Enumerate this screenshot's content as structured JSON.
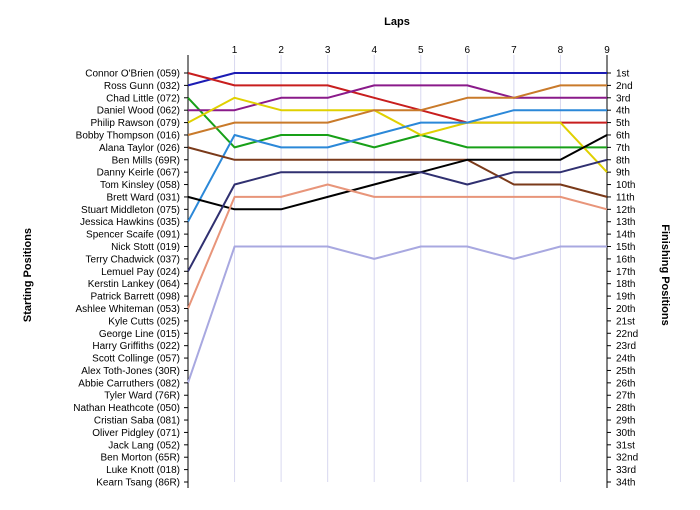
{
  "chart_data": {
    "type": "line",
    "title": "Laps",
    "ylabel_left": "Starting Positions",
    "ylabel_right": "Finishing Positions",
    "x_ticks": [
      "1",
      "2",
      "3",
      "4",
      "5",
      "6",
      "7",
      "8",
      "9"
    ],
    "x_range": [
      0,
      9
    ],
    "y_range": [
      1,
      34
    ],
    "grid": true,
    "starting_labels": [
      "Connor O'Brien (059)",
      "Ross Gunn (032)",
      "Chad Little (072)",
      "Daniel Wood (062)",
      "Philip Rawson (079)",
      "Bobby Thompson (016)",
      "Alana Taylor (026)",
      "Ben Mills (69R)",
      "Danny Keirle (067)",
      "Tom Kinsley (058)",
      "Brett Ward (031)",
      "Stuart Middleton (075)",
      "Jessica Hawkins (035)",
      "Spencer Scaife (091)",
      "Nick Stott (019)",
      "Terry Chadwick (037)",
      "Lemuel Pay (024)",
      "Kerstin Lankey (064)",
      "Patrick Barrett (098)",
      "Ashlee Whiteman (053)",
      "Kyle Cutts (025)",
      "George Line (015)",
      "Harry Griffiths (022)",
      "Scott Collinge (057)",
      "Alex Toth-Jones (30R)",
      "Abbie Carruthers (082)",
      "Tyler Ward (76R)",
      "Nathan Heathcote (050)",
      "Cristian Saba (081)",
      "Oliver Pidgley (071)",
      "Jack Lang (052)",
      "Ben Morton (65R)",
      "Luke Knott (018)",
      "Kearn Tsang (86R)"
    ],
    "finishing_labels": [
      "1st",
      "2nd",
      "3rd",
      "4th",
      "5th",
      "6th",
      "7th",
      "8th",
      "9th",
      "10th",
      "11th",
      "12th",
      "13th",
      "14th",
      "15th",
      "16th",
      "17th",
      "18th",
      "19th",
      "20th",
      "21st",
      "22nd",
      "23rd",
      "24th",
      "25th",
      "26th",
      "27th",
      "28th",
      "29th",
      "30th",
      "31st",
      "32nd",
      "33rd",
      "34th"
    ],
    "series": [
      {
        "color": "#1c1cb4",
        "positions": [
          2,
          1,
          1,
          1,
          1,
          1,
          1,
          1,
          1,
          1
        ]
      },
      {
        "color": "#c81e1e",
        "positions": [
          1,
          2,
          2,
          2,
          3,
          4,
          5,
          5,
          5,
          5
        ]
      },
      {
        "color": "#18a018",
        "positions": [
          3,
          7,
          6,
          6,
          7,
          6,
          7,
          7,
          7,
          7
        ]
      },
      {
        "color": "#8a1a8a",
        "positions": [
          4,
          4,
          3,
          3,
          2,
          2,
          2,
          3,
          3,
          3
        ]
      },
      {
        "color": "#e0d000",
        "positions": [
          5,
          3,
          4,
          4,
          4,
          6,
          5,
          5,
          5,
          9
        ]
      },
      {
        "color": "#c97a2a",
        "positions": [
          6,
          5,
          5,
          5,
          4,
          4,
          3,
          3,
          2,
          2
        ]
      },
      {
        "color": "#2b88d8",
        "positions": [
          13,
          6,
          7,
          7,
          6,
          5,
          5,
          4,
          4,
          4
        ]
      },
      {
        "color": "#7a3a1a",
        "positions": [
          7,
          8,
          8,
          8,
          8,
          8,
          8,
          10,
          10,
          11
        ]
      },
      {
        "color": "#000000",
        "positions": [
          11,
          12,
          12,
          11,
          10,
          9,
          8,
          8,
          8,
          6
        ]
      },
      {
        "color": "#303070",
        "positions": [
          17,
          10,
          9,
          9,
          9,
          9,
          10,
          9,
          9,
          8
        ]
      },
      {
        "color": "#e8957a",
        "positions": [
          20,
          11,
          11,
          10,
          11,
          11,
          11,
          11,
          11,
          12
        ]
      },
      {
        "color": "#a8a8e0",
        "positions": [
          26,
          15,
          15,
          15,
          16,
          15,
          15,
          16,
          15,
          15
        ]
      }
    ]
  }
}
